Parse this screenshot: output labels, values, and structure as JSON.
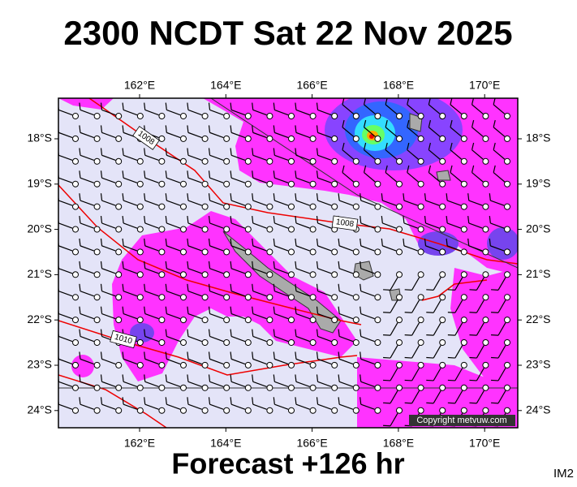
{
  "header": {
    "title": "2300 NCDT Sat 22 Nov 2025"
  },
  "map": {
    "lon_labels": [
      "162°E",
      "164°E",
      "166°E",
      "168°E",
      "170°E"
    ],
    "lat_labels": [
      "18°S",
      "19°S",
      "20°S",
      "21°S",
      "22°S",
      "23°S",
      "24°S"
    ],
    "isobar_labels": [
      "1008",
      "1008",
      "1010"
    ],
    "copyright": "Copyright metvuw.com"
  },
  "footer": {
    "forecast": "Forecast +126 hr",
    "code": "IM2"
  }
}
